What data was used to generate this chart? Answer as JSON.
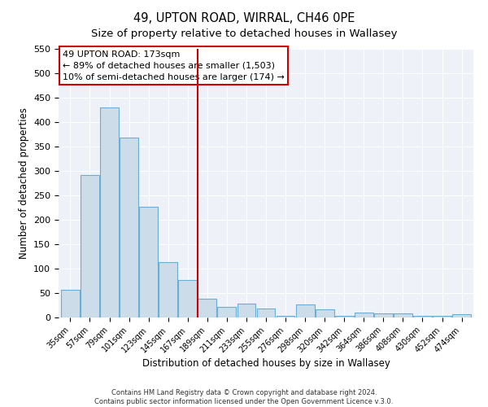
{
  "title": "49, UPTON ROAD, WIRRAL, CH46 0PE",
  "subtitle": "Size of property relative to detached houses in Wallasey",
  "xlabel": "Distribution of detached houses by size in Wallasey",
  "ylabel": "Number of detached properties",
  "bar_labels": [
    "35sqm",
    "57sqm",
    "79sqm",
    "101sqm",
    "123sqm",
    "145sqm",
    "167sqm",
    "189sqm",
    "211sqm",
    "233sqm",
    "255sqm",
    "276sqm",
    "298sqm",
    "320sqm",
    "342sqm",
    "364sqm",
    "386sqm",
    "408sqm",
    "430sqm",
    "452sqm",
    "474sqm"
  ],
  "bar_values": [
    57,
    292,
    430,
    368,
    226,
    114,
    77,
    38,
    21,
    29,
    18,
    3,
    27,
    16,
    3,
    10,
    9,
    8,
    3,
    3,
    7
  ],
  "bar_color": "#ccdce9",
  "bar_edge_color": "#6aaed6",
  "vline_index": 6.5,
  "annotation_line1": "49 UPTON ROAD: 173sqm",
  "annotation_line2": "← 89% of detached houses are smaller (1,503)",
  "annotation_line3": "10% of semi-detached houses are larger (174) →",
  "annotation_box_color": "#ffffff",
  "annotation_box_edge": "#cc0000",
  "vline_color": "#cc0000",
  "ylim": [
    0,
    550
  ],
  "yticks": [
    0,
    50,
    100,
    150,
    200,
    250,
    300,
    350,
    400,
    450,
    500,
    550
  ],
  "footer1": "Contains HM Land Registry data © Crown copyright and database right 2024.",
  "footer2": "Contains public sector information licensed under the Open Government Licence v.3.0.",
  "bg_color": "#eef2f8",
  "fig_bg_color": "#ffffff",
  "title_fontsize": 10.5,
  "subtitle_fontsize": 9.5,
  "bar_width": 0.95
}
